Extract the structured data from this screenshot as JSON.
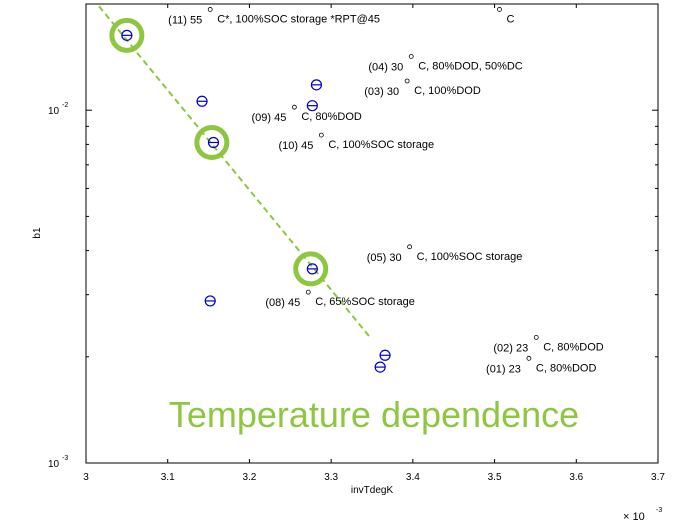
{
  "chart_data": {
    "type": "scatter",
    "title": "",
    "xlabel": "invTdegK",
    "ylabel": "b1",
    "x_multiplier": "× 10",
    "x_multiplier_exp": "-3",
    "xlim": [
      3.0,
      3.7
    ],
    "ylim": [
      0.001,
      0.02
    ],
    "y_scale": "log",
    "x_ticks": [
      {
        "value": 3.0,
        "label": "3"
      },
      {
        "value": 3.1,
        "label": "3.1"
      },
      {
        "value": 3.2,
        "label": "3.2"
      },
      {
        "value": 3.3,
        "label": "3.3"
      },
      {
        "value": 3.4,
        "label": "3.4"
      },
      {
        "value": 3.5,
        "label": "3.5"
      },
      {
        "value": 3.6,
        "label": "3.6"
      },
      {
        "value": 3.7,
        "label": "3.7"
      }
    ],
    "y_ticks": [
      {
        "value": 0.01,
        "base": "10",
        "exp": "-2"
      },
      {
        "value": 0.001,
        "base": "10",
        "exp": "-3"
      }
    ],
    "grid": false,
    "label_points": [
      {
        "x": 3.152,
        "y": 0.0193,
        "tag": "(11) 55",
        "desc": "C*, 100%SOC storage *RPT@45"
      },
      {
        "x": 3.506,
        "y": 0.0193,
        "tag": "",
        "desc": "C"
      },
      {
        "x": 3.398,
        "y": 0.0142,
        "tag": "(04) 30",
        "desc": "C, 80%DOD, 50%DC"
      },
      {
        "x": 3.393,
        "y": 0.0121,
        "tag": "(03) 30",
        "desc": "C, 100%DOD"
      },
      {
        "x": 3.255,
        "y": 0.0102,
        "tag": "(09) 45",
        "desc": "C, 80%DOD"
      },
      {
        "x": 3.288,
        "y": 0.0085,
        "tag": "(10) 45",
        "desc": "C, 100%SOC storage"
      },
      {
        "x": 3.396,
        "y": 0.0041,
        "tag": "(05) 30",
        "desc": "C, 100%SOC storage"
      },
      {
        "x": 3.272,
        "y": 0.00305,
        "tag": "(08) 45",
        "desc": "C, 65%SOC storage"
      },
      {
        "x": 3.551,
        "y": 0.00227,
        "tag": "(02) 23",
        "desc": "C, 80%DOD"
      },
      {
        "x": 3.542,
        "y": 0.00198,
        "tag": "(01) 23",
        "desc": "C, 80%DOD"
      }
    ],
    "fitted_points": [
      {
        "x": 3.05,
        "y": 0.0163
      },
      {
        "x": 3.142,
        "y": 0.0106
      },
      {
        "x": 3.282,
        "y": 0.0118
      },
      {
        "x": 3.277,
        "y": 0.0103
      },
      {
        "x": 3.156,
        "y": 0.0081
      },
      {
        "x": 3.277,
        "y": 0.00355
      },
      {
        "x": 3.152,
        "y": 0.00288
      },
      {
        "x": 3.366,
        "y": 0.00202
      },
      {
        "x": 3.36,
        "y": 0.00187
      }
    ],
    "trend_line": [
      {
        "x": 3.016,
        "y": 0.0197
      },
      {
        "x": 3.347,
        "y": 0.00228
      }
    ],
    "highlighted_points": [
      {
        "x": 3.05,
        "y": 0.0163
      },
      {
        "x": 3.154,
        "y": 0.0081
      },
      {
        "x": 3.275,
        "y": 0.00355
      }
    ],
    "annotation": "Temperature dependence",
    "colors": {
      "fitted": "#0000cc",
      "highlight": "#8dc63f",
      "trend": "#8dc63f",
      "annotation": "#8dc63f",
      "axes": "#000000"
    }
  }
}
